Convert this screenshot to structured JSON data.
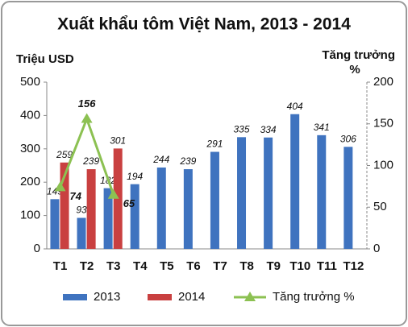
{
  "chart_data": {
    "type": "bar",
    "title": "Xuất khẩu tôm Việt Nam, 2013 - 2014",
    "ylabel": "Triệu USD",
    "y2label": [
      "Tăng trưởng",
      "%"
    ],
    "categories": [
      "T1",
      "T2",
      "T3",
      "T4",
      "T5",
      "T6",
      "T7",
      "T8",
      "T9",
      "T10",
      "T11",
      "T12"
    ],
    "series": [
      {
        "name": "2013",
        "color": "#3f73bf",
        "values": [
          149,
          93,
          182,
          194,
          244,
          239,
          291,
          335,
          334,
          404,
          341,
          306
        ]
      },
      {
        "name": "2014",
        "color": "#c94040",
        "values": [
          259,
          239,
          301,
          null,
          null,
          null,
          null,
          null,
          null,
          null,
          null,
          null
        ]
      },
      {
        "name": "Tăng trưởng %",
        "color": "#8cc152",
        "type": "line",
        "axis": "y2",
        "values": [
          74,
          156,
          65,
          null,
          null,
          null,
          null,
          null,
          null,
          null,
          null,
          null
        ]
      }
    ],
    "ylim": [
      0,
      500
    ],
    "yticks": [
      0,
      100,
      200,
      300,
      400,
      500
    ],
    "y2lim": [
      0,
      200
    ],
    "y2ticks": [
      0,
      50,
      100,
      150,
      200
    ],
    "grid": false,
    "legend": "bottom"
  }
}
